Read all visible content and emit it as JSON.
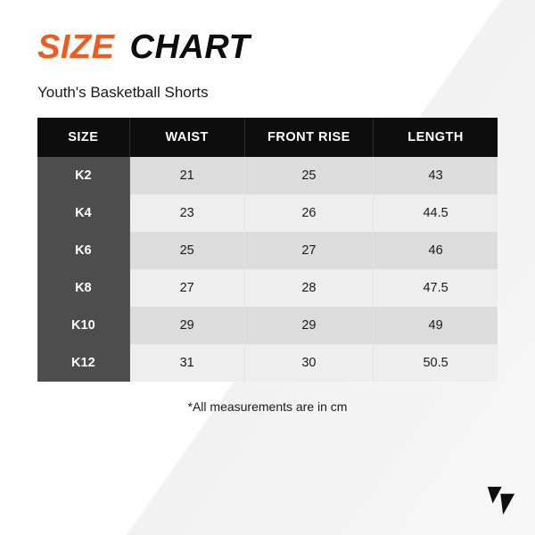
{
  "title": {
    "word1": "SIZE",
    "word2": "CHART"
  },
  "title_colors": {
    "word1": "#f05a1e",
    "word2": "#0d0d0d"
  },
  "subtitle": "Youth's Basketball Shorts",
  "subtitle_color": "#1a1a1a",
  "table": {
    "header_bg": "#0d0d0d",
    "header_fg": "#ffffff",
    "size_col_bg": "#4d4d4d",
    "size_col_fg": "#ffffff",
    "row_bg_odd": "#dcdcdc",
    "row_bg_even": "#eeeeee",
    "cell_fg": "#1a1a1a",
    "columns": [
      "SIZE",
      "WAIST",
      "FRONT RISE",
      "LENGTH"
    ],
    "col_widths_pct": [
      20,
      25,
      28,
      27
    ],
    "rows": [
      [
        "K2",
        "21",
        "25",
        "43"
      ],
      [
        "K4",
        "23",
        "26",
        "44.5"
      ],
      [
        "K6",
        "25",
        "27",
        "46"
      ],
      [
        "K8",
        "27",
        "28",
        "47.5"
      ],
      [
        "K10",
        "29",
        "29",
        "49"
      ],
      [
        "K12",
        "31",
        "30",
        "50.5"
      ]
    ]
  },
  "footnote": "*All measurements are in cm",
  "footnote_color": "#1a1a1a",
  "logo_color": "#0d0d0d"
}
